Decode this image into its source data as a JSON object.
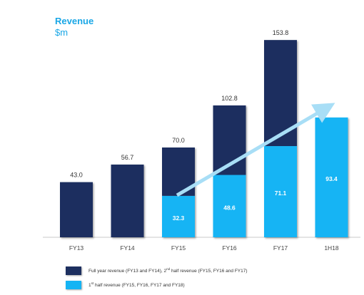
{
  "title": "Revenue",
  "subtitle": "$m",
  "colors": {
    "full_year": "#1d2f5f",
    "first_half": "#14b4f4",
    "arrow": "#a8def6",
    "axis": "#c8c8c8",
    "label_dark": "#333333",
    "label_light": "#ffffff"
  },
  "chart_data": {
    "type": "bar",
    "stacked": true,
    "categories": [
      "FY13",
      "FY14",
      "FY15",
      "FY16",
      "FY17",
      "1H18"
    ],
    "series": [
      {
        "key": "first_half",
        "values": [
          0,
          0,
          32.3,
          48.6,
          71.1,
          93.4
        ],
        "labels": [
          "",
          "",
          "32.3",
          "48.6",
          "71.1",
          "93.4"
        ]
      },
      {
        "key": "full_year",
        "values": [
          43.0,
          56.7,
          37.7,
          54.2,
          82.7,
          0
        ]
      }
    ],
    "totals": [
      "43.0",
      "56.7",
      "70.0",
      "102.8",
      "153.8",
      ""
    ],
    "trend_arrow": {
      "from_category": "FY15",
      "to_category": "1H18"
    },
    "legend_position": "bottom",
    "grid": false
  },
  "legend": {
    "full_year": {
      "prefix": "Full year revenue (FY13 and FY14), 2",
      "sup": "nd",
      "suffix": " half revenue (FY15, FY16 and FY17)"
    },
    "first_half": {
      "prefix": "1",
      "sup": "st",
      "suffix": " half revenue (FY15, FY16, FY17 and FY18)"
    }
  }
}
